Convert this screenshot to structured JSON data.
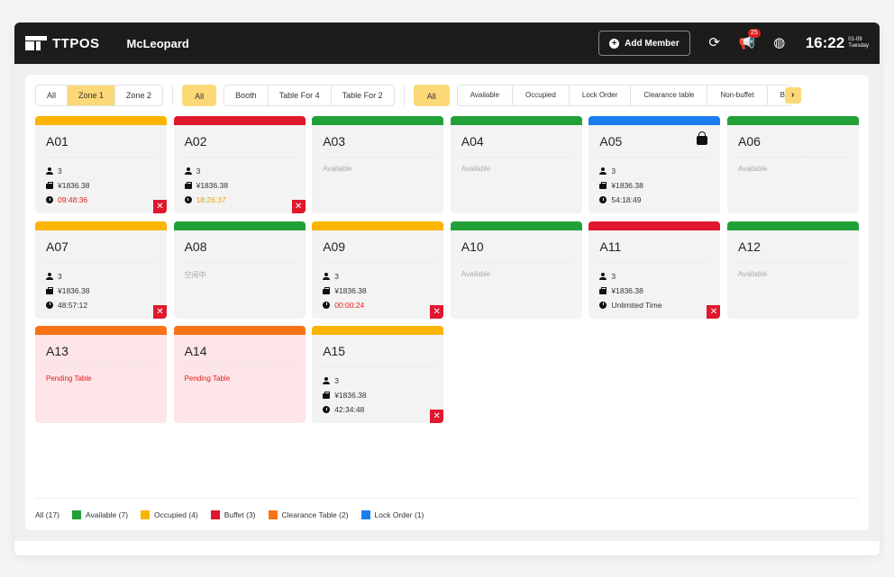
{
  "app": {
    "brand": "TTPOS",
    "store": "McLeopard"
  },
  "header": {
    "add_member_label": "Add Member",
    "notification_count": "25",
    "time": "16:22",
    "date": "01-09",
    "weekday": "Tuesday"
  },
  "colors": {
    "occupied": "#fbb500",
    "buffet": "#e0182d",
    "available": "#22a038",
    "lock": "#1a7ef0",
    "clearance": "#f97316"
  },
  "zones": [
    {
      "label": "All"
    },
    {
      "label": "Zone 1",
      "active": true
    },
    {
      "label": "Zone 2"
    }
  ],
  "table_types": {
    "all_label": "All",
    "items": [
      {
        "label": "Booth"
      },
      {
        "label": "Table For 4"
      },
      {
        "label": "Table For 2"
      }
    ]
  },
  "statuses": {
    "all_label": "All",
    "items": [
      {
        "label": "Available"
      },
      {
        "label": "Occupied"
      },
      {
        "label": "Lock Order"
      },
      {
        "label": "Clearance table"
      },
      {
        "label": "Non-buffet"
      },
      {
        "label": "Bu"
      }
    ]
  },
  "tables": [
    {
      "name": "A01",
      "color": "#fbb500",
      "guests": "3",
      "amount": "¥1836.38",
      "time": "09:48:36",
      "time_color": "red",
      "close": true
    },
    {
      "name": "A02",
      "color": "#e0182d",
      "guests": "3",
      "amount": "¥1836.38",
      "time": "18:26:37",
      "time_color": "orange",
      "close": true
    },
    {
      "name": "A03",
      "color": "#22a038",
      "status": "Available"
    },
    {
      "name": "A04",
      "color": "#22a038",
      "status": "Available"
    },
    {
      "name": "A05",
      "color": "#1a7ef0",
      "guests": "3",
      "amount": "¥1836.38",
      "time": "54:18:49",
      "time_color": "normal",
      "lock": true
    },
    {
      "name": "A06",
      "color": "#22a038",
      "status": "Available"
    },
    {
      "name": "A07",
      "color": "#fbb500",
      "guests": "3",
      "amount": "¥1836.38",
      "time": "48:57:12",
      "time_color": "normal",
      "close": true
    },
    {
      "name": "A08",
      "color": "#22a038",
      "status": "空闲中"
    },
    {
      "name": "A09",
      "color": "#fbb500",
      "guests": "3",
      "amount": "¥1836.38",
      "time": "00:00:24",
      "time_color": "red",
      "close": true
    },
    {
      "name": "A10",
      "color": "#22a038",
      "status": "Available"
    },
    {
      "name": "A11",
      "color": "#e0182d",
      "guests": "3",
      "amount": "¥1836.38",
      "time": "Unlimited Time",
      "time_color": "normal",
      "close": true
    },
    {
      "name": "A12",
      "color": "#22a038",
      "status": "Available"
    },
    {
      "name": "A13",
      "color": "#f97316",
      "status": "Pending Table",
      "pending": true
    },
    {
      "name": "A14",
      "color": "#f97316",
      "status": "Pending Table",
      "pending": true
    },
    {
      "name": "A15",
      "color": "#fbb500",
      "guests": "3",
      "amount": "¥1836.38",
      "time": "42:34:48",
      "time_color": "normal",
      "close": true
    }
  ],
  "legend": {
    "all_label": "All (17)",
    "items": [
      {
        "label": "Available (7)",
        "color": "#22a038"
      },
      {
        "label": "Occupied (4)",
        "color": "#fbb500"
      },
      {
        "label": "Buffet (3)",
        "color": "#e0182d"
      },
      {
        "label": "Clearance Table (2)",
        "color": "#f97316"
      },
      {
        "label": "Lock Order (1)",
        "color": "#1a7ef0"
      }
    ]
  }
}
